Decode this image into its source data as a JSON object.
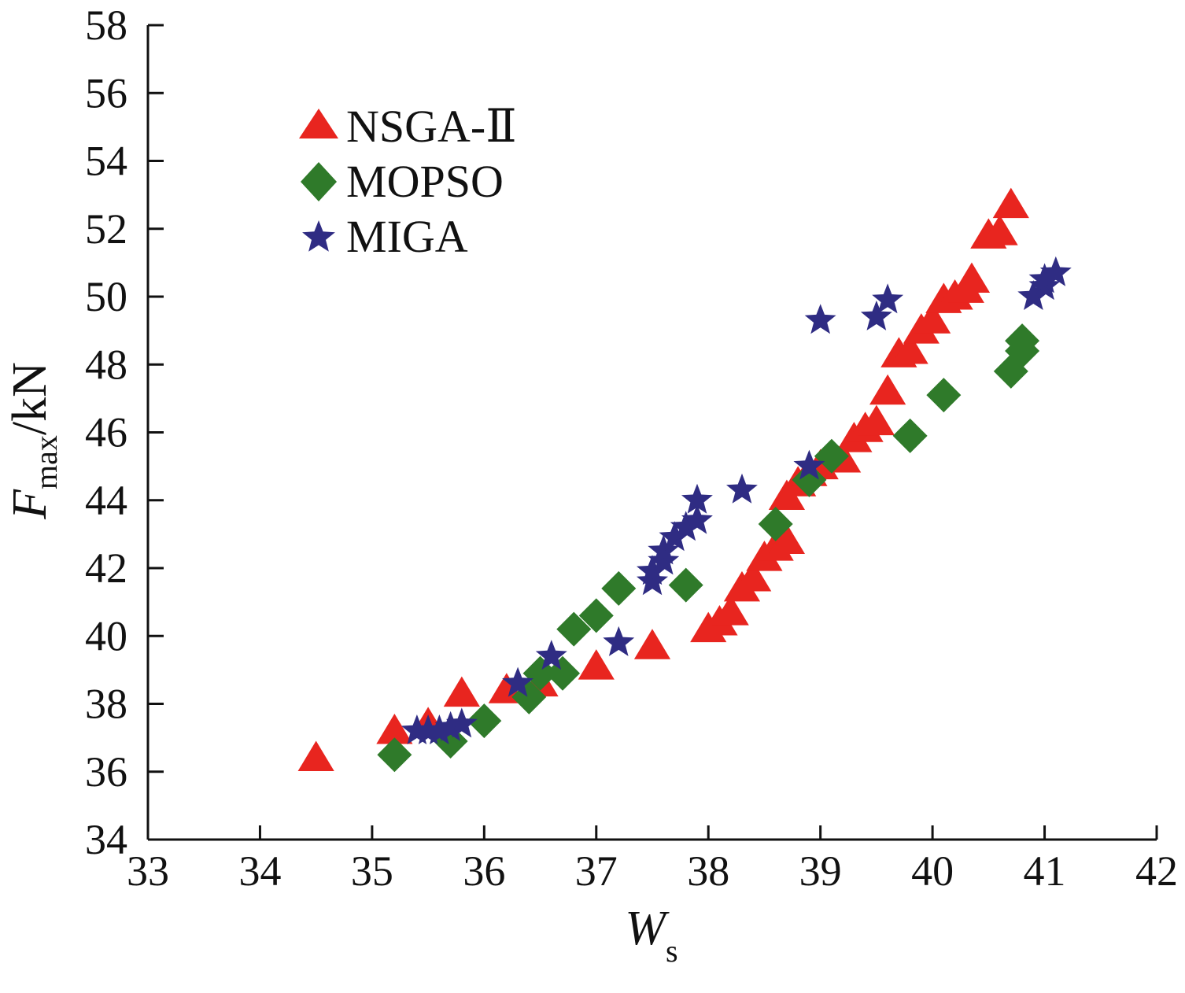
{
  "chart_data": {
    "type": "scatter",
    "xlabel": {
      "main": "W",
      "sub": "s"
    },
    "ylabel": {
      "main": "F",
      "sub": "max",
      "unit": "/kN"
    },
    "xlim": [
      33,
      42
    ],
    "ylim": [
      34,
      58
    ],
    "xticks": [
      33,
      34,
      35,
      36,
      37,
      38,
      39,
      40,
      41,
      42
    ],
    "yticks": [
      34,
      36,
      38,
      40,
      42,
      44,
      46,
      48,
      50,
      52,
      54,
      56,
      58
    ],
    "grid": false,
    "legend_position": "top-left",
    "series": [
      {
        "name": "NSGA-Ⅱ",
        "marker": "triangle",
        "color": "#e8251f",
        "points": [
          [
            34.5,
            36.4
          ],
          [
            35.2,
            37.2
          ],
          [
            35.5,
            37.4
          ],
          [
            35.8,
            38.3
          ],
          [
            36.2,
            38.4
          ],
          [
            36.5,
            38.6
          ],
          [
            37.0,
            39.1
          ],
          [
            37.5,
            39.7
          ],
          [
            38.0,
            40.2
          ],
          [
            38.1,
            40.4
          ],
          [
            38.2,
            40.7
          ],
          [
            38.3,
            41.4
          ],
          [
            38.4,
            41.7
          ],
          [
            38.5,
            42.3
          ],
          [
            38.6,
            42.6
          ],
          [
            38.7,
            42.8
          ],
          [
            38.7,
            44.1
          ],
          [
            38.8,
            44.5
          ],
          [
            38.9,
            44.8
          ],
          [
            39.0,
            45.0
          ],
          [
            39.2,
            45.2
          ],
          [
            39.3,
            45.8
          ],
          [
            39.4,
            46.1
          ],
          [
            39.5,
            46.3
          ],
          [
            39.6,
            47.2
          ],
          [
            39.7,
            48.3
          ],
          [
            39.8,
            48.4
          ],
          [
            39.9,
            49.0
          ],
          [
            40.0,
            49.3
          ],
          [
            40.1,
            49.9
          ],
          [
            40.2,
            50.0
          ],
          [
            40.3,
            50.2
          ],
          [
            40.35,
            50.5
          ],
          [
            40.5,
            51.8
          ],
          [
            40.6,
            51.9
          ],
          [
            40.7,
            52.7
          ]
        ]
      },
      {
        "name": "MOPSO",
        "marker": "diamond",
        "color": "#2f7a2a",
        "points": [
          [
            35.2,
            36.5
          ],
          [
            35.7,
            36.9
          ],
          [
            36.0,
            37.5
          ],
          [
            36.4,
            38.2
          ],
          [
            36.5,
            38.9
          ],
          [
            36.7,
            38.9
          ],
          [
            36.8,
            40.2
          ],
          [
            37.0,
            40.6
          ],
          [
            37.2,
            41.4
          ],
          [
            37.8,
            41.5
          ],
          [
            38.6,
            43.3
          ],
          [
            38.9,
            44.6
          ],
          [
            39.1,
            45.3
          ],
          [
            39.8,
            45.9
          ],
          [
            40.1,
            47.1
          ],
          [
            40.7,
            47.8
          ],
          [
            40.8,
            48.4
          ],
          [
            40.8,
            48.7
          ]
        ]
      },
      {
        "name": "MIGA",
        "marker": "star",
        "color": "#2f2c83",
        "points": [
          [
            35.4,
            37.2
          ],
          [
            35.5,
            37.2
          ],
          [
            35.6,
            37.2
          ],
          [
            35.7,
            37.3
          ],
          [
            35.8,
            37.4
          ],
          [
            36.3,
            38.6
          ],
          [
            36.6,
            39.4
          ],
          [
            37.2,
            39.8
          ],
          [
            37.5,
            41.6
          ],
          [
            37.5,
            41.9
          ],
          [
            37.6,
            42.2
          ],
          [
            37.6,
            42.5
          ],
          [
            37.7,
            42.9
          ],
          [
            37.8,
            43.2
          ],
          [
            37.9,
            43.4
          ],
          [
            37.9,
            44.0
          ],
          [
            38.3,
            44.3
          ],
          [
            38.9,
            45.0
          ],
          [
            39.0,
            49.3
          ],
          [
            39.5,
            49.4
          ],
          [
            39.6,
            49.9
          ],
          [
            40.9,
            50.0
          ],
          [
            41.0,
            50.3
          ],
          [
            41.0,
            50.5
          ],
          [
            41.1,
            50.7
          ]
        ]
      }
    ]
  }
}
